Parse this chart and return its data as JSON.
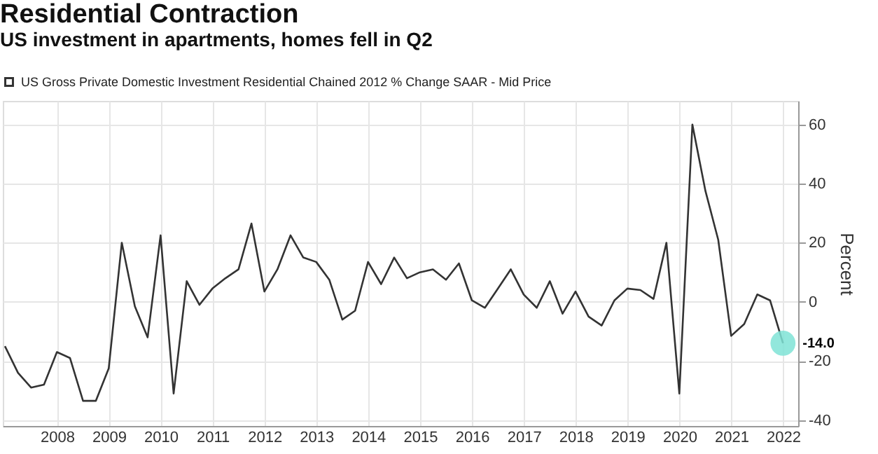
{
  "chart_data": {
    "type": "line",
    "title": "Residential Contraction",
    "subtitle": "US investment in apartments, homes fell in Q2",
    "ylabel": "Percent",
    "x": [
      "2007-06-30",
      "2007-09-30",
      "2007-12-31",
      "2008-03-31",
      "2008-06-30",
      "2008-09-30",
      "2008-12-31",
      "2009-03-31",
      "2009-06-30",
      "2009-09-30",
      "2009-12-31",
      "2010-03-31",
      "2010-06-30",
      "2010-09-30",
      "2010-12-31",
      "2011-03-31",
      "2011-06-30",
      "2011-09-30",
      "2011-12-31",
      "2012-03-31",
      "2012-06-30",
      "2012-09-30",
      "2012-12-31",
      "2013-03-31",
      "2013-06-30",
      "2013-09-30",
      "2013-12-31",
      "2014-03-31",
      "2014-06-30",
      "2014-09-30",
      "2014-12-31",
      "2015-03-31",
      "2015-06-30",
      "2015-09-30",
      "2015-12-31",
      "2016-03-31",
      "2016-06-30",
      "2016-09-30",
      "2016-12-31",
      "2017-03-31",
      "2017-06-30",
      "2017-09-30",
      "2017-12-31",
      "2018-03-31",
      "2018-06-30",
      "2018-09-30",
      "2018-12-31",
      "2019-03-31",
      "2019-06-30",
      "2019-09-30",
      "2019-12-31",
      "2020-03-31",
      "2020-06-30",
      "2020-09-30",
      "2020-12-31",
      "2021-03-31",
      "2021-06-30",
      "2021-09-30",
      "2021-12-31",
      "2022-03-31",
      "2022-06-30"
    ],
    "series": [
      {
        "name": "US Gross Private Domestic Investment Residential Chained 2012 % Change SAAR - Mid Price",
        "color": "#333333",
        "values": [
          -15,
          -24,
          -29,
          -28,
          -17,
          -19,
          -33.5,
          -33.5,
          -22.5,
          20,
          -1.5,
          -12,
          22.5,
          -31,
          7,
          -1,
          4.5,
          8,
          11,
          26.5,
          3.5,
          11,
          22.5,
          15,
          13.5,
          7.5,
          -6,
          -3,
          13.5,
          6,
          15,
          8,
          10,
          11,
          7.5,
          13,
          0.5,
          -2,
          4.5,
          11,
          2.5,
          -2,
          7,
          -4,
          3.5,
          -5,
          -8,
          0.5,
          4.5,
          4,
          1,
          20,
          -31,
          60,
          37.5,
          21,
          -11.5,
          -7.5,
          2.5,
          0.5,
          -14
        ]
      }
    ],
    "xlim": [
      "2007-06-15",
      "2022-10-15"
    ],
    "xticks": [
      {
        "value": "2008-07-01",
        "label": "2008"
      },
      {
        "value": "2009-07-01",
        "label": "2009"
      },
      {
        "value": "2010-07-01",
        "label": "2010"
      },
      {
        "value": "2011-07-01",
        "label": "2011"
      },
      {
        "value": "2012-07-01",
        "label": "2012"
      },
      {
        "value": "2013-07-01",
        "label": "2013"
      },
      {
        "value": "2014-07-01",
        "label": "2014"
      },
      {
        "value": "2015-07-01",
        "label": "2015"
      },
      {
        "value": "2016-07-01",
        "label": "2016"
      },
      {
        "value": "2017-07-01",
        "label": "2017"
      },
      {
        "value": "2018-07-01",
        "label": "2018"
      },
      {
        "value": "2019-07-01",
        "label": "2019"
      },
      {
        "value": "2020-07-01",
        "label": "2020"
      },
      {
        "value": "2021-07-01",
        "label": "2021"
      },
      {
        "value": "2022-07-01",
        "label": "2022"
      }
    ],
    "ylim": [
      -42,
      68
    ],
    "yticks": [
      -40,
      -20,
      0,
      20,
      40,
      60
    ],
    "annotations": [
      {
        "text": "-14.0",
        "x": "2022-06-30",
        "y": -14
      }
    ],
    "grid": true,
    "legend": "top left",
    "marker": "none",
    "line_style": "solid"
  }
}
